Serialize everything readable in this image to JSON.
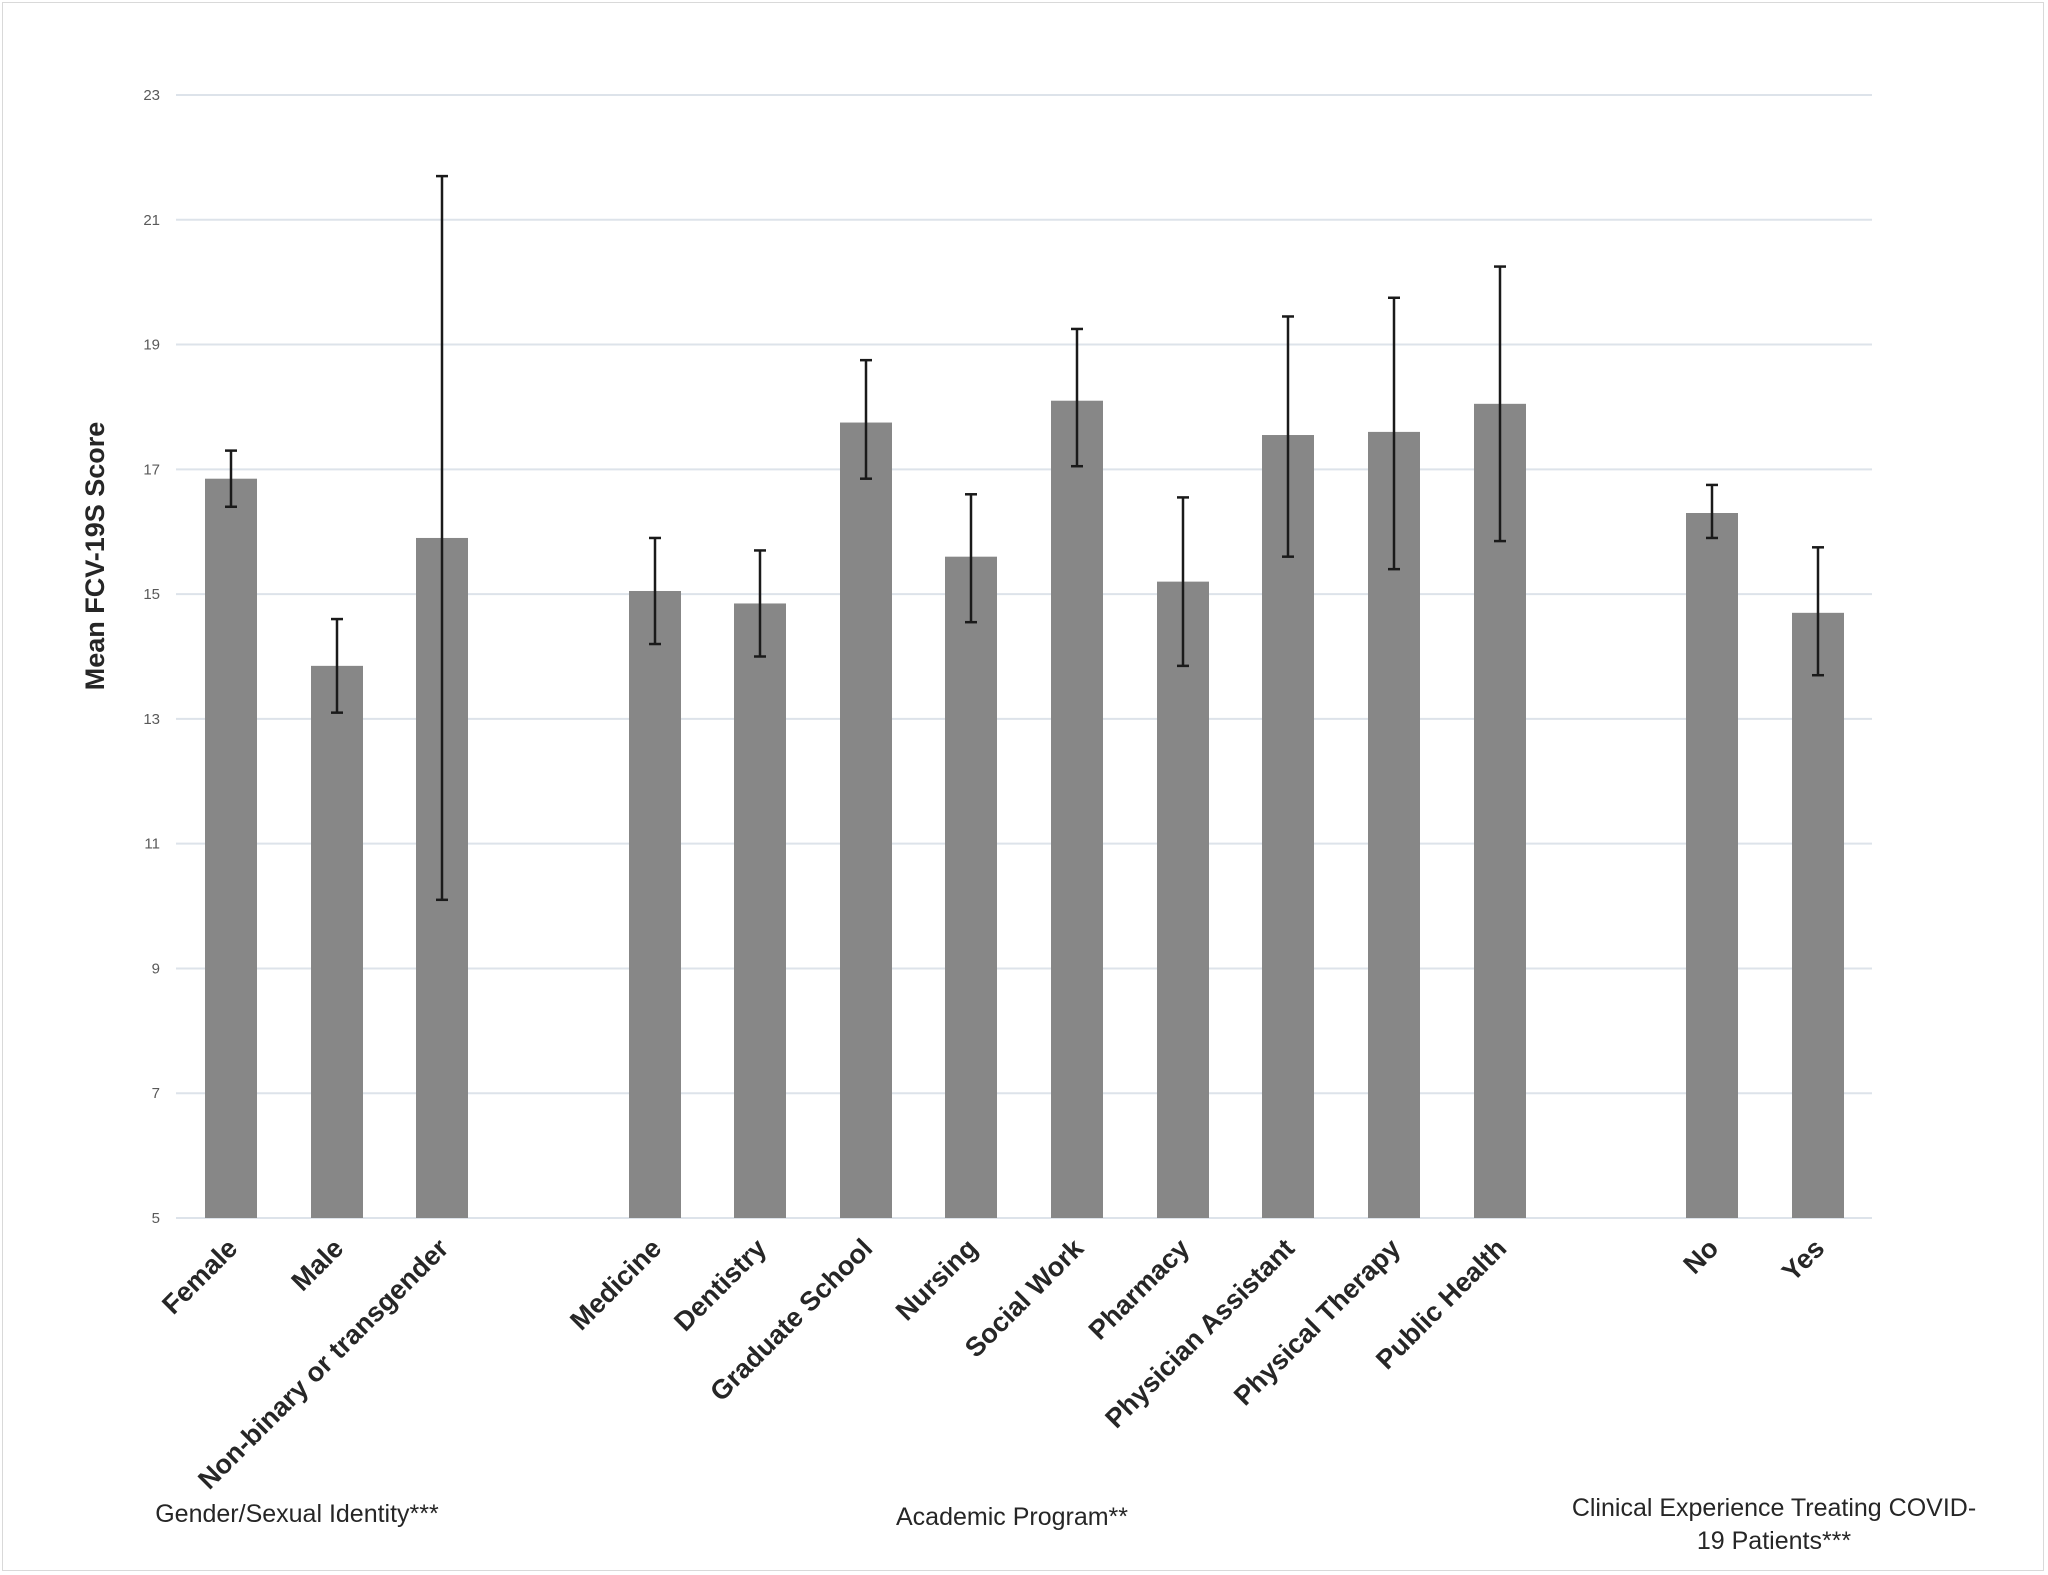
{
  "chart_data": {
    "type": "bar",
    "ylabel": "Mean FCV-19S Score",
    "ylim": [
      5,
      23
    ],
    "yticks": [
      5,
      7,
      9,
      11,
      13,
      15,
      17,
      19,
      21,
      23
    ],
    "grid": true,
    "bar_color": "#878787",
    "error_color": "#1a1a1a",
    "gridline_color": "#dde3ea",
    "groups": [
      {
        "label": "Gender/Sexual Identity***",
        "categories": [
          "Female",
          "Male",
          "Non-binary or transgender"
        ],
        "values": [
          16.85,
          13.85,
          15.9
        ],
        "error_low": [
          16.4,
          13.1,
          10.1
        ],
        "error_high": [
          17.3,
          14.6,
          21.7
        ]
      },
      {
        "label": "Academic Program**",
        "categories": [
          "Medicine",
          "Dentistry",
          "Graduate School",
          "Nursing",
          "Social Work",
          "Pharmacy",
          "Physician Assistant",
          "Physical Therapy",
          "Public Health"
        ],
        "values": [
          15.05,
          14.85,
          17.75,
          15.6,
          18.1,
          15.2,
          17.55,
          17.6,
          18.05
        ],
        "error_low": [
          14.2,
          14.0,
          16.85,
          14.55,
          17.05,
          13.85,
          15.6,
          15.4,
          15.85
        ],
        "error_high": [
          15.9,
          15.7,
          18.75,
          16.6,
          19.25,
          16.55,
          19.45,
          19.75,
          20.25
        ]
      },
      {
        "label": "Clinical Experience Treating COVID-19 Patients***",
        "label_lines": [
          "Clinical Experience Treating COVID-",
          "19 Patients***"
        ],
        "categories": [
          "No",
          "Yes"
        ],
        "values": [
          16.3,
          14.7
        ],
        "error_low": [
          15.9,
          13.7
        ],
        "error_high": [
          16.75,
          15.75
        ]
      }
    ]
  }
}
